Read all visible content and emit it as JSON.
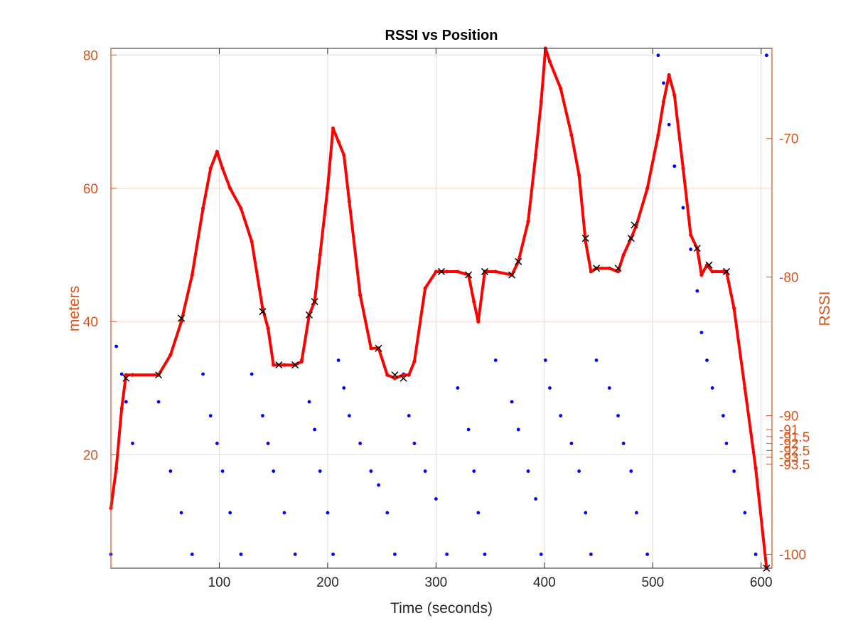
{
  "chart_data": {
    "type": "scatter",
    "title": "RSSI vs Position",
    "xlabel": "Time (seconds)",
    "ylabel_left": "meters",
    "ylabel_right": "RSSI",
    "xlim": [
      0,
      610
    ],
    "ylim_left": [
      3,
      81
    ],
    "ylim_right": [
      -101,
      -63.5
    ],
    "x_ticks": [
      "100",
      "200",
      "300",
      "400",
      "500",
      "600"
    ],
    "x_tick_values": [
      100,
      200,
      300,
      400,
      500,
      600
    ],
    "y_left_ticks": [
      "20",
      "40",
      "60",
      "80"
    ],
    "y_left_tick_values": [
      20,
      40,
      60,
      80
    ],
    "y_right_ticks": [
      "-70",
      "-80",
      "-90",
      "-91",
      "-91.5",
      "-92",
      "-92.5",
      "-93",
      "-93.5",
      "-100"
    ],
    "y_right_tick_values": [
      -70,
      -80,
      -90,
      -91,
      -91.5,
      -92,
      -92.5,
      -93,
      -93.5,
      -100
    ],
    "grid": true,
    "colors": {
      "position": "#ff0000",
      "rssi": "#0000ff",
      "markers": "#000000",
      "axis": "#d95319",
      "grid": "#dcdcdc",
      "grid_right": "#f5d5c8"
    },
    "series": [
      {
        "type": "line",
        "color": "#ff0000",
        "x": [
          0,
          5,
          10,
          14,
          20,
          44,
          55,
          65,
          75,
          85,
          92,
          98,
          103,
          110,
          120,
          130,
          140,
          145,
          150,
          160,
          170,
          176,
          183,
          188,
          193,
          200,
          205,
          210,
          215,
          220,
          230,
          240,
          247,
          255,
          262,
          270,
          275,
          280,
          290,
          300,
          310,
          320,
          330,
          335,
          339,
          345,
          355,
          370,
          376,
          385,
          392,
          397,
          401,
          405,
          415,
          425,
          432,
          438,
          443,
          448,
          460,
          468,
          473,
          480,
          485,
          495,
          505,
          510,
          515,
          520,
          528,
          535,
          541,
          545,
          550,
          555,
          565,
          568,
          575,
          585,
          595,
          605
        ],
        "y": [
          12,
          18,
          27,
          32,
          32,
          32,
          35,
          40,
          47,
          57,
          63,
          65.5,
          63,
          60,
          57,
          52,
          42,
          39,
          33.5,
          33.5,
          33.5,
          34,
          41,
          43,
          50,
          60,
          69,
          67,
          65,
          58,
          44,
          36,
          36,
          32,
          31.5,
          32,
          32,
          34,
          45,
          47.5,
          47.5,
          47.5,
          47,
          43,
          40,
          47.5,
          47.5,
          47,
          49,
          55,
          65,
          73,
          81,
          79,
          75,
          68,
          62,
          52,
          47.5,
          48,
          48,
          47.5,
          50,
          52.5,
          54.5,
          60,
          68,
          73,
          77,
          74,
          63,
          53,
          51,
          47,
          48.5,
          47.5,
          47.5,
          47.5,
          42,
          30,
          18,
          3
        ]
      },
      {
        "type": "scatter",
        "color": "#0000ff",
        "x": [
          0,
          5,
          10,
          14,
          20,
          44,
          55,
          65,
          75,
          85,
          92,
          98,
          103,
          110,
          120,
          130,
          140,
          145,
          150,
          160,
          170,
          176,
          183,
          188,
          193,
          200,
          205,
          210,
          215,
          220,
          230,
          240,
          247,
          255,
          262,
          270,
          275,
          280,
          290,
          300,
          310,
          320,
          330,
          335,
          339,
          345,
          355,
          370,
          376,
          385,
          392,
          397,
          401,
          405,
          415,
          425,
          432,
          438,
          443,
          448,
          460,
          468,
          473,
          480,
          485,
          495,
          505,
          510,
          515,
          520,
          528,
          535,
          541,
          545,
          550,
          555,
          565,
          568,
          575,
          585,
          595,
          605
        ],
        "y": [
          -100,
          -85,
          -87,
          -89,
          -92,
          -89,
          -94,
          -97,
          -100,
          -87,
          -90,
          -92,
          -94,
          -97,
          -100,
          -87,
          -90,
          -92,
          -94,
          -97,
          -100,
          -86,
          -89,
          -91,
          -94,
          -97,
          -100,
          -86,
          -88,
          -90,
          -92,
          -94,
          -95,
          -97,
          -100,
          -87,
          -90,
          -92,
          -94,
          -96,
          -100,
          -88,
          -91,
          -94,
          -97,
          -100,
          -86,
          -89,
          -91,
          -94,
          -96,
          -100,
          -86,
          -88,
          -90,
          -92,
          -94,
          -97,
          -100,
          -86,
          -88,
          -90,
          -92,
          -94,
          -97,
          -100,
          -64,
          -66,
          -69,
          -72,
          -75,
          -78,
          -81,
          -84,
          -86,
          -88,
          -90,
          -92,
          -94,
          -97,
          -100,
          -64
        ]
      },
      {
        "type": "scatter",
        "color": "#000000",
        "x": [
          14,
          44,
          65,
          140,
          155,
          170,
          183,
          188,
          247,
          262,
          270,
          305,
          330,
          345,
          370,
          376,
          438,
          448,
          468,
          480,
          483,
          541,
          552,
          568,
          605
        ],
        "y": [
          31.5,
          32,
          40.5,
          41.5,
          33.5,
          33.5,
          41,
          43,
          36,
          32,
          31.5,
          47.5,
          47,
          47.5,
          47,
          49,
          52.5,
          48,
          48,
          52.5,
          54.5,
          51,
          48.5,
          47.5,
          3
        ]
      }
    ]
  }
}
